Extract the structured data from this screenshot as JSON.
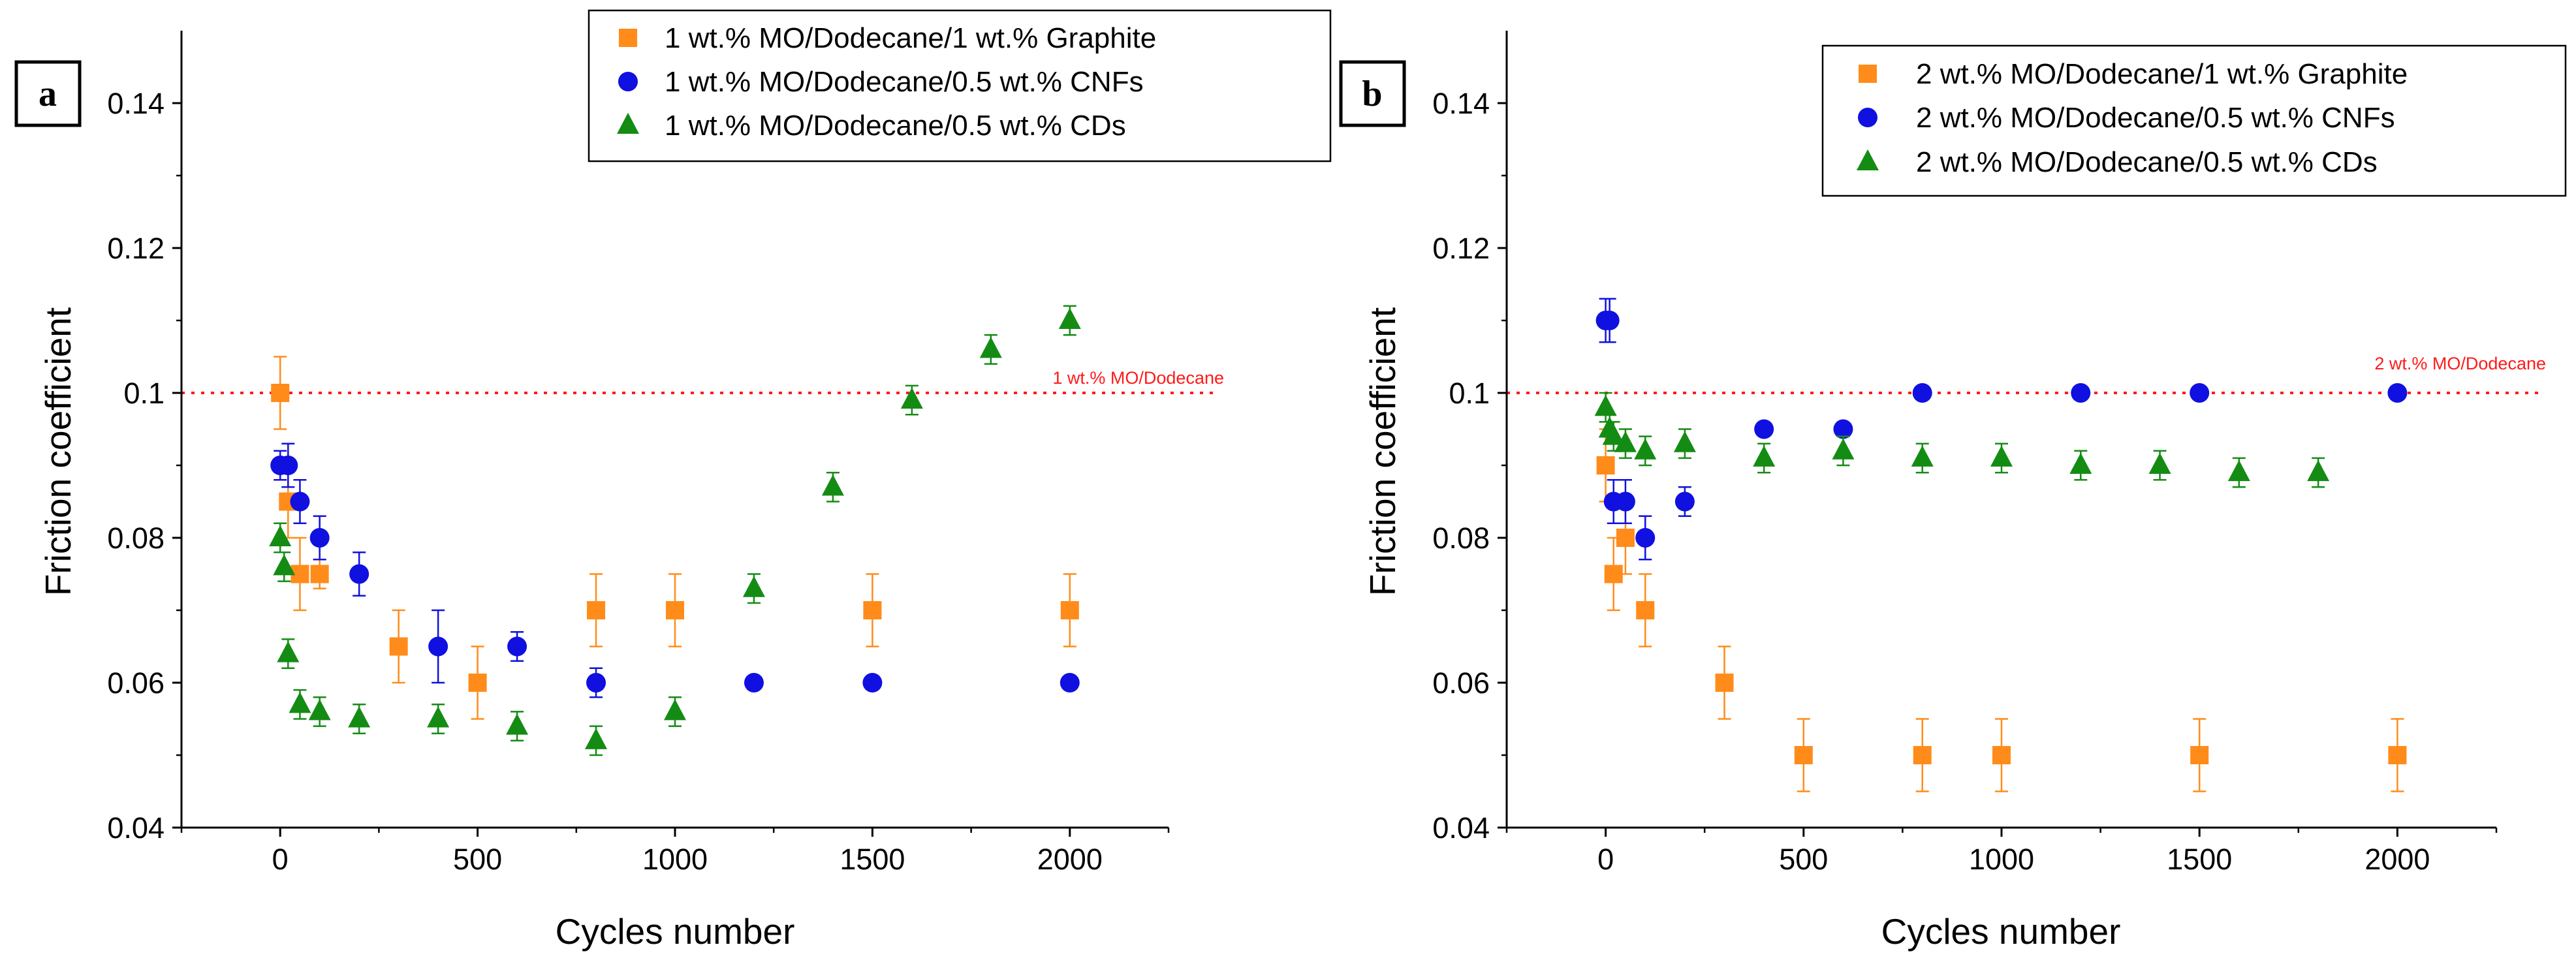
{
  "colors": {
    "graphite": "#FF8C1A",
    "cnfs": "#1010E0",
    "cds": "#148C14",
    "reference": "#FF1A1A"
  },
  "chart_data": [
    {
      "panel": "a",
      "type": "scatter",
      "xlabel": "Cycles number",
      "ylabel": "Friction coefficient",
      "xlim": [
        -250,
        2250
      ],
      "ylim": [
        0.04,
        0.15
      ],
      "xticks": [
        0,
        500,
        1000,
        1500,
        2000
      ],
      "xtick_labels": [
        "0",
        "500",
        "1000",
        "1500",
        "2000"
      ],
      "yticks": [
        0.04,
        0.06,
        0.08,
        0.1,
        0.12,
        0.14
      ],
      "ytick_labels": [
        "0.04",
        "0.06",
        "0.08",
        "0.1",
        "0.12",
        "0.14"
      ],
      "legend_position": "top-right",
      "reference_line": {
        "y": 0.1,
        "label": "1 wt.% MO/Dodecane"
      },
      "series": [
        {
          "key": "graphite",
          "name": "1 wt.% MO/Dodecane/1 wt.% Graphite",
          "marker": "square",
          "x": [
            0,
            20,
            50,
            100,
            300,
            500,
            800,
            1000,
            1500,
            2000
          ],
          "y": [
            0.1,
            0.085,
            0.075,
            0.075,
            0.065,
            0.06,
            0.07,
            0.07,
            0.07,
            0.07
          ],
          "err": [
            0.005,
            0.005,
            0.005,
            0.002,
            0.005,
            0.005,
            0.005,
            0.005,
            0.005,
            0.005
          ]
        },
        {
          "key": "cnfs",
          "name": "1 wt.% MO/Dodecane/0.5 wt.% CNFs",
          "marker": "circle",
          "x": [
            0,
            20,
            50,
            100,
            200,
            400,
            600,
            800,
            1200,
            1500,
            2000
          ],
          "y": [
            0.09,
            0.09,
            0.085,
            0.08,
            0.075,
            0.065,
            0.065,
            0.06,
            0.06,
            0.06,
            0.06
          ],
          "err": [
            0.002,
            0.003,
            0.003,
            0.003,
            0.003,
            0.005,
            0.002,
            0.002,
            0.0005,
            0.0005,
            0.0005
          ]
        },
        {
          "key": "cds",
          "name": "1 wt.% MO/Dodecane/0.5 wt.% CDs",
          "marker": "triangle",
          "x": [
            0,
            10,
            20,
            50,
            100,
            200,
            400,
            600,
            800,
            1000,
            1200,
            1400,
            1600,
            1800,
            2000
          ],
          "y": [
            0.08,
            0.076,
            0.064,
            0.057,
            0.056,
            0.055,
            0.055,
            0.054,
            0.052,
            0.056,
            0.073,
            0.087,
            0.099,
            0.106,
            0.11
          ],
          "err": [
            0.002,
            0.002,
            0.002,
            0.002,
            0.002,
            0.002,
            0.002,
            0.002,
            0.002,
            0.002,
            0.002,
            0.002,
            0.002,
            0.002,
            0.002
          ]
        }
      ]
    },
    {
      "panel": "b",
      "type": "scatter",
      "xlabel": "Cycles number",
      "ylabel": "Friction coefficient",
      "xlim": [
        -250,
        2250
      ],
      "ylim": [
        0.04,
        0.15
      ],
      "xticks": [
        0,
        500,
        1000,
        1500,
        2000
      ],
      "xtick_labels": [
        "0",
        "500",
        "1000",
        "1500",
        "2000"
      ],
      "yticks": [
        0.04,
        0.06,
        0.08,
        0.1,
        0.12,
        0.14
      ],
      "ytick_labels": [
        "0.04",
        "0.06",
        "0.08",
        "0.1",
        "0.12",
        "0.14"
      ],
      "legend_position": "top-right",
      "reference_line": {
        "y": 0.1,
        "label": "2 wt.% MO/Dodecane"
      },
      "series": [
        {
          "key": "graphite",
          "name": "2 wt.% MO/Dodecane/1 wt.% Graphite",
          "marker": "square",
          "x": [
            0,
            20,
            50,
            100,
            300,
            500,
            800,
            1000,
            1500,
            2000
          ],
          "y": [
            0.09,
            0.075,
            0.08,
            0.07,
            0.06,
            0.05,
            0.05,
            0.05,
            0.05,
            0.05
          ],
          "err": [
            0.005,
            0.005,
            0.005,
            0.005,
            0.005,
            0.005,
            0.005,
            0.005,
            0.005,
            0.005
          ]
        },
        {
          "key": "cnfs",
          "name": "2 wt.% MO/Dodecane/0.5 wt.% CNFs",
          "marker": "circle",
          "x": [
            0,
            10,
            20,
            50,
            100,
            200,
            400,
            600,
            800,
            1200,
            1500,
            2000
          ],
          "y": [
            0.11,
            0.11,
            0.085,
            0.085,
            0.08,
            0.085,
            0.095,
            0.095,
            0.1,
            0.1,
            0.1,
            0.1
          ],
          "err": [
            0.003,
            0.003,
            0.003,
            0.003,
            0.003,
            0.002,
            0.0005,
            0.0005,
            0.0005,
            0.0005,
            0.0005,
            0.0005
          ]
        },
        {
          "key": "cds",
          "name": "2 wt.% MO/Dodecane/0.5 wt.% CDs",
          "marker": "triangle",
          "x": [
            0,
            10,
            20,
            50,
            100,
            200,
            400,
            600,
            800,
            1000,
            1200,
            1400,
            1600,
            1800
          ],
          "y": [
            0.098,
            0.095,
            0.094,
            0.093,
            0.092,
            0.093,
            0.091,
            0.092,
            0.091,
            0.091,
            0.09,
            0.09,
            0.089,
            0.089
          ],
          "err": [
            0.002,
            0.002,
            0.002,
            0.002,
            0.002,
            0.002,
            0.002,
            0.002,
            0.002,
            0.002,
            0.002,
            0.002,
            0.002,
            0.002
          ]
        }
      ]
    }
  ]
}
